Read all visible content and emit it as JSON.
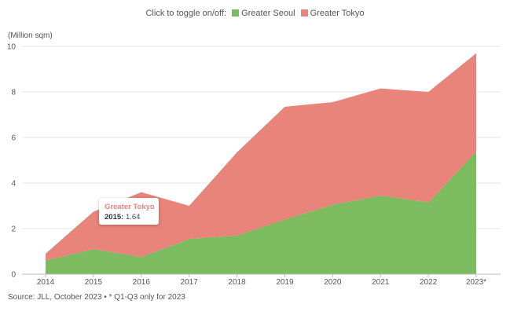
{
  "legend": {
    "prompt": "Click to toggle on/off:",
    "items": [
      {
        "label": "Greater Seoul",
        "color": "#7dbb60"
      },
      {
        "label": "Greater Tokyo",
        "color": "#e8847a"
      }
    ]
  },
  "unit_label": "(Million sqm)",
  "source": "Source: JLL, October 2023 • * Q1-Q3 only for 2023",
  "tooltip": {
    "series": "Greater Tokyo",
    "year": "2015:",
    "value": "1.64"
  },
  "chart_data": {
    "type": "area",
    "stacked": true,
    "categories": [
      "2014",
      "2015",
      "2016",
      "2017",
      "2018",
      "2019",
      "2020",
      "2021",
      "2022",
      "2023*"
    ],
    "series": [
      {
        "name": "Greater Seoul",
        "color": "#7dbb60",
        "values": [
          0.6,
          1.1,
          0.75,
          1.55,
          1.7,
          2.4,
          3.05,
          3.45,
          3.15,
          5.4
        ]
      },
      {
        "name": "Greater Tokyo",
        "color": "#e8847a",
        "values": [
          0.3,
          1.64,
          2.85,
          1.45,
          3.65,
          4.95,
          4.5,
          4.7,
          4.85,
          4.3
        ]
      }
    ],
    "yticks": [
      "0",
      "2",
      "4",
      "6",
      "8",
      "10"
    ],
    "ylim": [
      0,
      10
    ],
    "grid": true,
    "ylabel": "(Million sqm)",
    "xlabel": ""
  }
}
